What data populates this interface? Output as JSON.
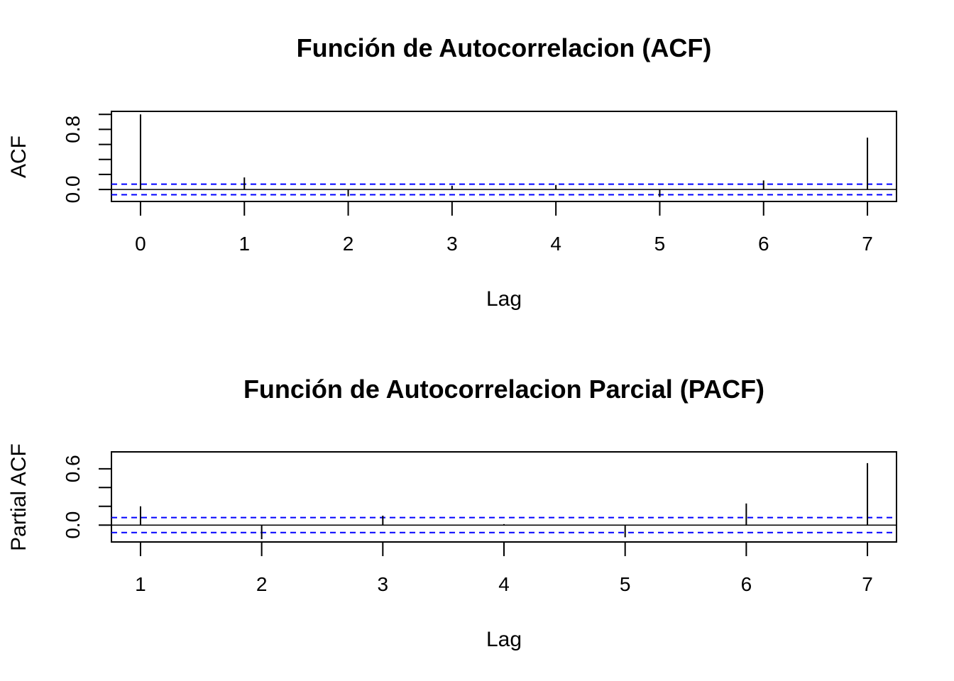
{
  "chart_data": [
    {
      "type": "bar",
      "title": "Función de Autocorrelacion (ACF)",
      "xlabel": "Lag",
      "ylabel": "ACF",
      "x": [
        0,
        1,
        2,
        3,
        4,
        5,
        6,
        7
      ],
      "values": [
        1.0,
        0.16,
        -0.09,
        0.05,
        0.06,
        -0.1,
        0.12,
        0.69
      ],
      "xlim": [
        -0.28,
        7.28
      ],
      "ylim": [
        -0.16,
        1.04
      ],
      "xticks": [
        "0",
        "1",
        "2",
        "3",
        "4",
        "5",
        "6",
        "7"
      ],
      "yticks_labeled": [
        "0.0",
        "0.8"
      ],
      "yticks_all": [
        0.0,
        0.2,
        0.4,
        0.6,
        0.8,
        1.0
      ],
      "ci": [
        0.07,
        -0.07
      ],
      "colors": {
        "bars": "#000000",
        "ci": "#0000ff",
        "zero": "#000000"
      }
    },
    {
      "type": "bar",
      "title": "Función de Autocorrelacion Parcial (PACF)",
      "xlabel": "Lag",
      "ylabel": "Partial ACF",
      "x": [
        1,
        2,
        3,
        4,
        5,
        6,
        7
      ],
      "values": [
        0.2,
        -0.15,
        0.1,
        0.01,
        -0.13,
        0.23,
        0.66
      ],
      "xlim": [
        0.76,
        7.24
      ],
      "ylim": [
        -0.18,
        0.78
      ],
      "xticks": [
        "1",
        "2",
        "3",
        "4",
        "5",
        "6",
        "7"
      ],
      "yticks_labeled": [
        "0.0",
        "0.6"
      ],
      "yticks_all": [
        0.0,
        0.2,
        0.4,
        0.6
      ],
      "ci": [
        0.08,
        -0.08
      ],
      "colors": {
        "bars": "#000000",
        "ci": "#0000ff",
        "zero": "#000000"
      }
    }
  ]
}
